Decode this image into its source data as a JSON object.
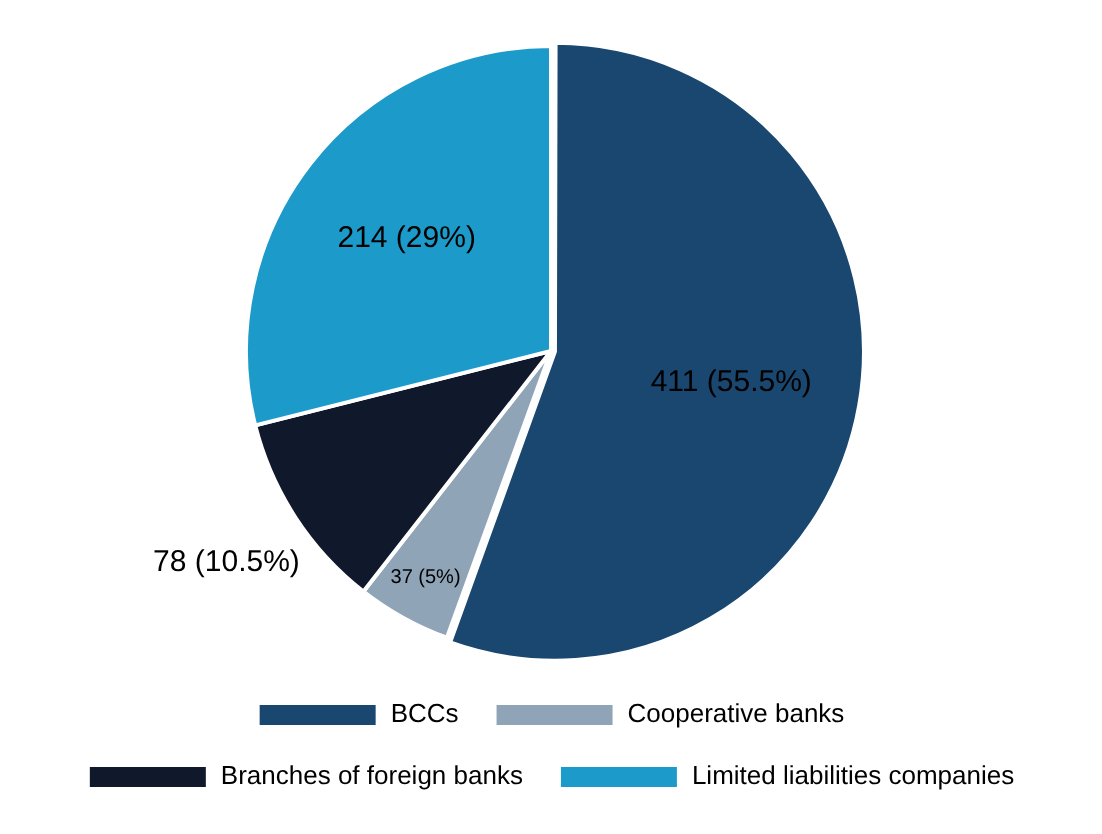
{
  "chart_data": {
    "type": "pie",
    "categories": [
      "BCCs",
      "Cooperative banks",
      "Branches of foreign banks",
      "Limited liabilities companies"
    ],
    "values": [
      411,
      37,
      78,
      214
    ],
    "colors": [
      "#1a476f",
      "#90a4b8",
      "#0f192b",
      "#1c9ac9"
    ],
    "value_labels": [
      "411 (55.5%)",
      "37 (5%)",
      "78 (10.5%)",
      "214 (29%)"
    ],
    "legend": "bottom"
  }
}
